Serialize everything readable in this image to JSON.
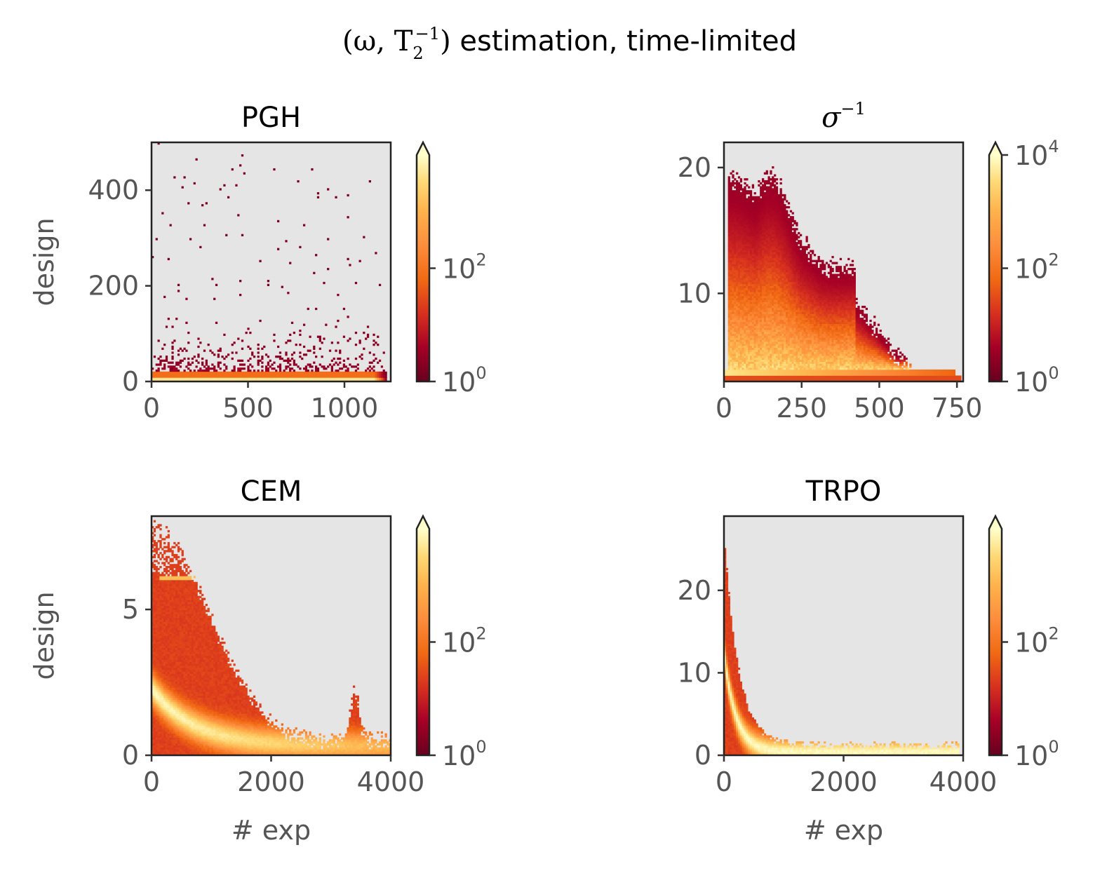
{
  "figure": {
    "title_math": "(ω, T",
    "title_math_sub": "2",
    "title_math_sup": "−1",
    "title_math_close": ")",
    "title_text": " estimation, time-limited"
  },
  "colors": {
    "background": "#e5e5e5",
    "cmap": [
      "#67001f",
      "#a50026",
      "#d7301f",
      "#f16913",
      "#fd8d3c",
      "#feb24c",
      "#fed976",
      "#ffffcc"
    ],
    "frame": "#222222"
  },
  "chart_data": [
    {
      "id": "pgh",
      "type": "heatmap",
      "title": "PGH",
      "title_is_math": false,
      "ylabel": "design",
      "xlabel": "",
      "xlim": [
        0,
        1240
      ],
      "ylim": [
        0,
        500
      ],
      "xticks": [
        0,
        500,
        1000
      ],
      "xtick_labels": [
        "0",
        "500",
        "1000"
      ],
      "yticks": [
        0,
        200,
        400
      ],
      "ytick_labels": [
        "0",
        "200",
        "400"
      ],
      "pattern": "pgh",
      "colorbar": {
        "scale": "log",
        "ticks": [
          {
            "base": "10",
            "exp": "0",
            "frac": 0.0
          },
          {
            "base": "10",
            "exp": "2",
            "frac": 0.5
          }
        ]
      }
    },
    {
      "id": "sigma",
      "type": "heatmap",
      "title": "σ",
      "title_sup": "−1",
      "title_is_math": true,
      "ylabel": "",
      "xlabel": "",
      "xlim": [
        0,
        770
      ],
      "ylim": [
        3,
        22
      ],
      "xticks": [
        0,
        250,
        500,
        750
      ],
      "xtick_labels": [
        "0",
        "250",
        "500",
        "750"
      ],
      "yticks": [
        10,
        20
      ],
      "ytick_labels": [
        "10",
        "20"
      ],
      "pattern": "sigma",
      "colorbar": {
        "scale": "log",
        "ticks": [
          {
            "base": "10",
            "exp": "0",
            "frac": 0.0
          },
          {
            "base": "10",
            "exp": "2",
            "frac": 0.5
          },
          {
            "base": "10",
            "exp": "4",
            "frac": 1.0
          }
        ]
      }
    },
    {
      "id": "cem",
      "type": "heatmap",
      "title": "CEM",
      "title_is_math": false,
      "ylabel": "design",
      "xlabel": "# exp",
      "xlim": [
        0,
        4000
      ],
      "ylim": [
        0,
        8.2
      ],
      "xticks": [
        0,
        2000,
        4000
      ],
      "xtick_labels": [
        "0",
        "2000",
        "4000"
      ],
      "yticks": [
        0,
        5
      ],
      "ytick_labels": [
        "0",
        "5"
      ],
      "pattern": "cem",
      "colorbar": {
        "scale": "log",
        "ticks": [
          {
            "base": "10",
            "exp": "0",
            "frac": 0.0
          },
          {
            "base": "10",
            "exp": "2",
            "frac": 0.5
          }
        ]
      }
    },
    {
      "id": "trpo",
      "type": "heatmap",
      "title": "TRPO",
      "title_is_math": false,
      "ylabel": "",
      "xlabel": "# exp",
      "xlim": [
        0,
        4000
      ],
      "ylim": [
        0,
        29
      ],
      "xticks": [
        0,
        2000,
        4000
      ],
      "xtick_labels": [
        "0",
        "2000",
        "4000"
      ],
      "yticks": [
        0,
        10,
        20
      ],
      "ytick_labels": [
        "0",
        "10",
        "20"
      ],
      "pattern": "trpo",
      "colorbar": {
        "scale": "log",
        "ticks": [
          {
            "base": "10",
            "exp": "0",
            "frac": 0.0
          },
          {
            "base": "10",
            "exp": "2",
            "frac": 0.5
          }
        ]
      }
    }
  ]
}
